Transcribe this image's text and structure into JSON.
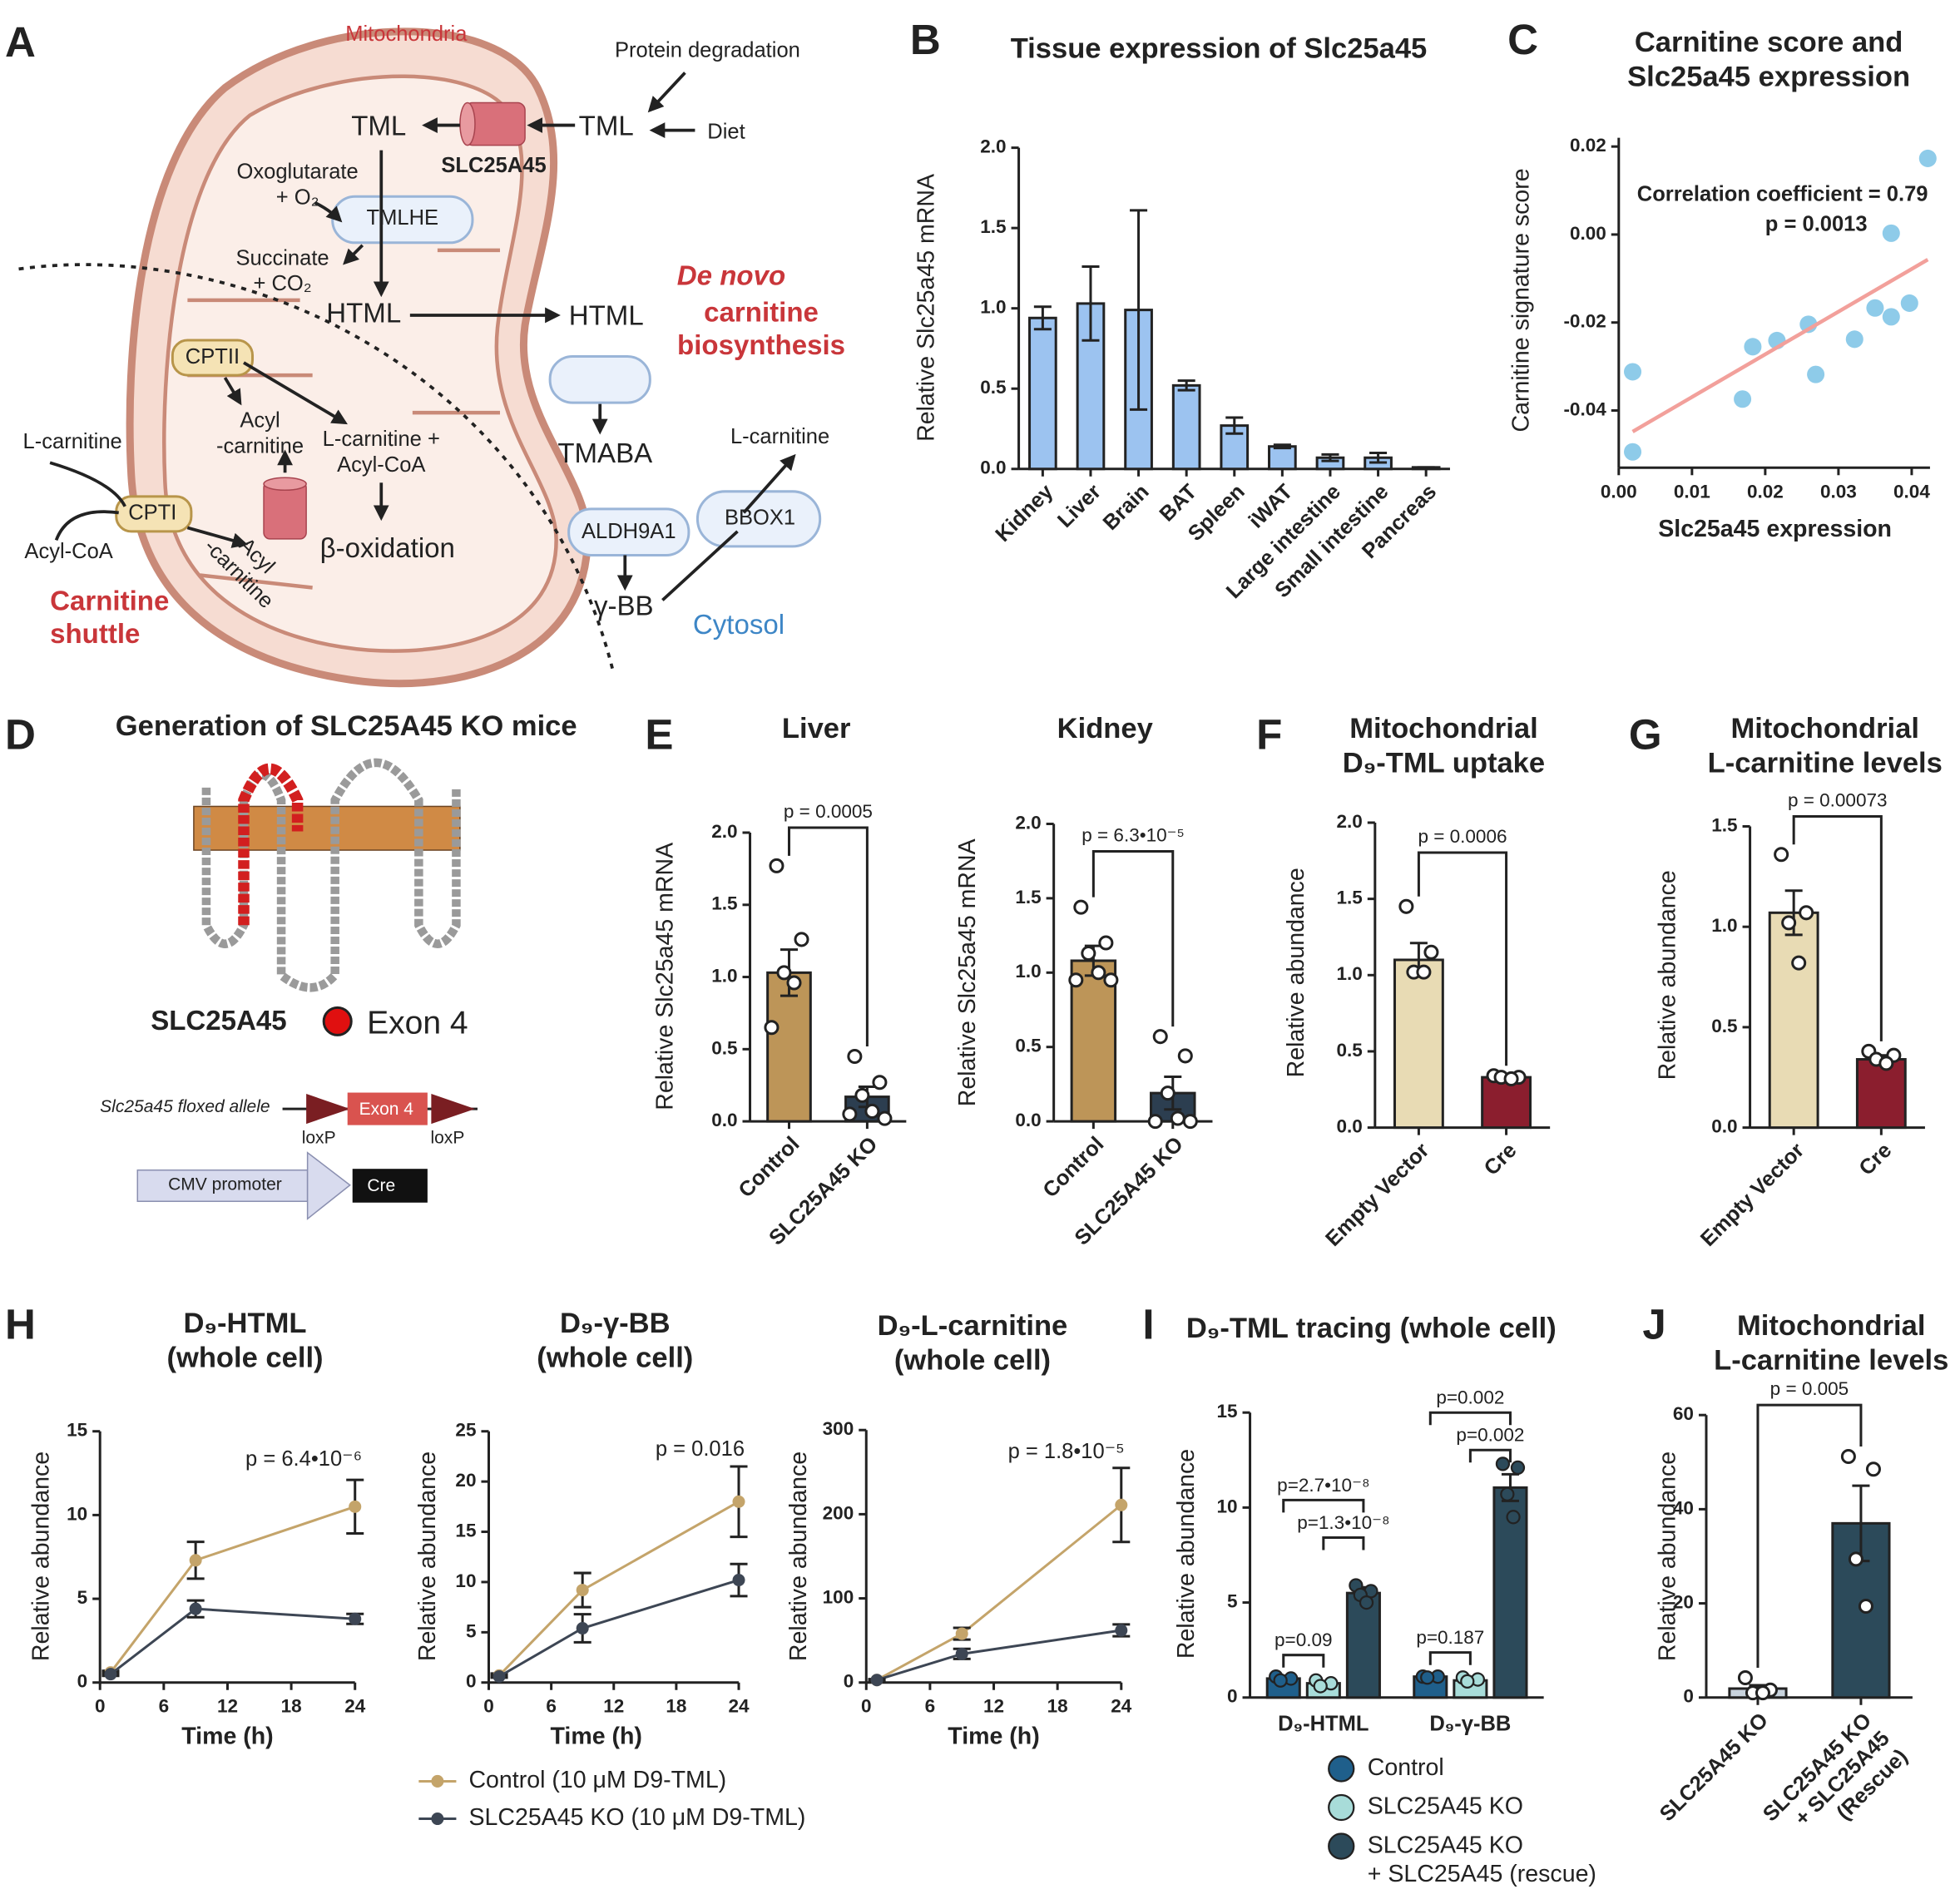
{
  "panel_labels": [
    "A",
    "B",
    "C",
    "D",
    "E",
    "F",
    "G",
    "H",
    "I",
    "J"
  ],
  "diagram_a": {
    "labels": [
      "Mitochondria",
      "Protein degradation",
      "TML",
      "TML",
      "Diet",
      "SLC25A45",
      "Oxoglutarate\n+ O₂",
      "TMLHE",
      "Succinate\n+ CO₂",
      "HTML",
      "HTML",
      "De novo",
      "carnitine\nbiosynthesis",
      "CPTII",
      "Acyl\n-carnitine",
      "L-carnitine +\nAcyl-CoA",
      "L-carnitine",
      "TMABA",
      "L-carnitine",
      "CPTI",
      "BBOX1",
      "ALDH9A1",
      "Acyl-CoA",
      "β-oxidation",
      "Acyl\n-carnitine",
      "γ-BB",
      "Carnitine\nshuttle",
      "Cytosol"
    ]
  },
  "diagram_d": {
    "labels": [
      "Generation of SLC25A45 KO mice",
      "SLC25A45",
      "Exon 4",
      "Slc25a45 floxed allele",
      "Exon 4",
      "loxP",
      "loxP",
      "CMV promoter",
      "Cre"
    ]
  },
  "chart_data": [
    {
      "type": "bar",
      "title": "Tissue expression of Slc25a45",
      "y_label": "Relative Slc25a45 mRNA",
      "categories": [
        "Kidney",
        "Liver",
        "Brain",
        "BAT",
        "Spleen",
        "iWAT",
        "Large intestine",
        "Small intestine",
        "Pancreas"
      ],
      "values": [
        0.94,
        1.03,
        0.99,
        0.52,
        0.27,
        0.14,
        0.07,
        0.07,
        0.01
      ],
      "errors": [
        0.07,
        0.23,
        0.62,
        0.03,
        0.05,
        0.01,
        0.02,
        0.03,
        0
      ],
      "color": "#9cc3f0",
      "ylim": [
        0,
        2
      ],
      "yticks": [
        {
          "value": 0,
          "label": "0.0"
        },
        0.5,
        {
          "value": 1,
          "label": "1.0"
        },
        1.5,
        {
          "value": 2,
          "label": "2.0"
        }
      ]
    },
    {
      "type": "scatter",
      "title": "Carnitine score and\nSlc25a45 expression",
      "x_label": "Slc25a45 expression",
      "y_label": "Carnitine signature score",
      "annotations": [
        "Correlation coefficient = 0.79",
        "p = 0.0013"
      ],
      "x": [
        0.0422,
        0.0372,
        0.035,
        0.0372,
        0.0397,
        0.0322,
        0.0259,
        0.0216,
        0.0183,
        0.0269,
        0.0169,
        0.0019,
        0.0019
      ],
      "y": [
        0.0173,
        0.0003,
        -0.0167,
        -0.0187,
        -0.0156,
        -0.0238,
        -0.0204,
        -0.0241,
        -0.0255,
        -0.0318,
        -0.0374,
        -0.0312,
        -0.0494
      ],
      "fit": {
        "x": [
          0.0019,
          0.0422
        ],
        "y": [
          -0.0448,
          -0.0057
        ]
      },
      "color": "#8ecbe9",
      "fit_color": "#f2a09b",
      "xlim": [
        0,
        0.0425
      ],
      "xticks": [
        {
          "value": 0,
          "label": "0.00"
        },
        0.01,
        0.02,
        0.03,
        0.04
      ],
      "ylim": [
        -0.053,
        0.022
      ],
      "yticks": [
        0.02,
        {
          "value": 0,
          "label": "0.00"
        },
        -0.02,
        -0.04
      ]
    },
    {
      "type": "bar",
      "title": "Liver",
      "y_label": "Relative Slc25a45 mRNA",
      "categories": [
        "Control",
        "SLC25A45 KO"
      ],
      "values": [
        1.03,
        0.17
      ],
      "errors": [
        0.16,
        0.07
      ],
      "points": [
        [
          1.77,
          1.26,
          1.03,
          0.96,
          0.65
        ],
        [
          0.45,
          0.27,
          0.18,
          0.07,
          0.05,
          0.02
        ]
      ],
      "colors": [
        "#bd9558",
        "#2c3e50"
      ],
      "p_value": "p = 0.0005",
      "ylim": [
        0,
        2
      ],
      "yticks": [
        {
          "value": 0,
          "label": "0.0"
        },
        0.5,
        {
          "value": 1,
          "label": "1.0"
        },
        1.5,
        {
          "value": 2,
          "label": "2.0"
        }
      ]
    },
    {
      "type": "bar",
      "title": "Kidney",
      "y_label": "Relative Slc25a45 mRNA",
      "categories": [
        "Control",
        "SLC25A45 KO"
      ],
      "values": [
        1.08,
        0.19
      ],
      "errors": [
        0.1,
        0.11
      ],
      "points": [
        [
          1.44,
          1.2,
          1.13,
          1.0,
          0.95,
          0.95
        ],
        [
          0.57,
          0.44,
          0.19,
          0.02,
          0.0,
          0.0
        ]
      ],
      "colors": [
        "#bd9558",
        "#2c3e50"
      ],
      "p_value": "p = 6.3•10⁻⁵",
      "ylim": [
        0,
        2
      ],
      "yticks": [
        {
          "value": 0,
          "label": "0.0"
        },
        0.5,
        {
          "value": 1,
          "label": "1.0"
        },
        1.5,
        {
          "value": 2,
          "label": "2.0"
        }
      ]
    },
    {
      "type": "bar",
      "title": "Mitochondrial\nD₉-TML uptake",
      "y_label": "Relative abundance",
      "categories": [
        "Empty Vector",
        "Cre"
      ],
      "values": [
        1.1,
        0.33
      ],
      "errors": [
        0.11,
        0.01
      ],
      "points": [
        [
          1.45,
          1.15,
          1.02,
          1.02
        ],
        [
          0.34,
          0.33,
          0.33,
          0.32
        ]
      ],
      "colors": [
        "#e8dbb4",
        "#8b1e2e"
      ],
      "p_value": "p = 0.0006",
      "ylim": [
        0,
        2
      ],
      "yticks": [
        {
          "value": 0,
          "label": "0.0"
        },
        0.5,
        {
          "value": 1,
          "label": "1.0"
        },
        1.5,
        {
          "value": 2,
          "label": "2.0"
        }
      ]
    },
    {
      "type": "bar",
      "title": "Mitochondrial\nL-carnitine levels",
      "y_label": "Relative abundance",
      "categories": [
        "Empty Vector",
        "Cre"
      ],
      "values": [
        1.07,
        0.34
      ],
      "errors": [
        0.11,
        0.02
      ],
      "points": [
        [
          1.36,
          1.07,
          1.02,
          0.82
        ],
        [
          0.38,
          0.36,
          0.34,
          0.32
        ]
      ],
      "colors": [
        "#e8dbb4",
        "#8b1e2e"
      ],
      "p_value": "p = 0.00073",
      "ylim": [
        0,
        1.5
      ],
      "yticks": [
        {
          "value": 0,
          "label": "0.0"
        },
        0.5,
        {
          "value": 1,
          "label": "1.0"
        },
        1.5
      ]
    },
    {
      "type": "line",
      "title": "D₉-HTML\n(whole cell)",
      "x_label": "Time (h)",
      "y_label": "Relative abundance",
      "p_value": "p = 6.4•10⁻⁶",
      "x": [
        1,
        9,
        24
      ],
      "series": [
        {
          "name": "Control (10 μM D9-TML)",
          "color": "#c4a46a",
          "values": [
            0.6,
            7.3,
            10.5
          ],
          "errors": [
            0.1,
            1.1,
            1.6
          ]
        },
        {
          "name": "SLC25A45 KO (10 μM D9-TML)",
          "color": "#3d4654",
          "values": [
            0.5,
            4.4,
            3.8
          ],
          "errors": [
            0.1,
            0.5,
            0.3
          ]
        }
      ],
      "xlim": [
        0,
        24
      ],
      "xticks": [
        0,
        6,
        12,
        18,
        24
      ],
      "ylim": [
        0,
        15
      ],
      "yticks": [
        0,
        5,
        10,
        15
      ]
    },
    {
      "type": "line",
      "title": "D₉-γ-BB\n(whole cell)",
      "x_label": "Time (h)",
      "y_label": "Relative abundance",
      "p_value": "p = 0.016",
      "x": [
        1,
        9,
        24
      ],
      "series": [
        {
          "color": "#c4a46a",
          "values": [
            0.7,
            9.2,
            18
          ],
          "errors": [
            0.2,
            1.7,
            3.5
          ]
        },
        {
          "color": "#3d4654",
          "values": [
            0.6,
            5.4,
            10.2
          ],
          "errors": [
            0.1,
            1.4,
            1.6
          ]
        }
      ],
      "xlim": [
        0,
        24
      ],
      "xticks": [
        0,
        6,
        12,
        18,
        24
      ],
      "ylim": [
        0,
        25
      ],
      "yticks": [
        0,
        5,
        10,
        15,
        20,
        25
      ]
    },
    {
      "type": "line",
      "title": "D₉-L-carnitine\n(whole cell)",
      "x_label": "Time (h)",
      "y_label": "Relative abundance",
      "p_value": "p = 1.8•10⁻⁵",
      "x": [
        1,
        9,
        24
      ],
      "series": [
        {
          "color": "#c4a46a",
          "values": [
            3,
            58,
            211
          ],
          "errors": [
            1,
            7,
            44
          ]
        },
        {
          "color": "#3d4654",
          "values": [
            3,
            34,
            62
          ],
          "errors": [
            1,
            6,
            7
          ]
        }
      ],
      "xlim": [
        0,
        24
      ],
      "xticks": [
        0,
        6,
        12,
        18,
        24
      ],
      "ylim": [
        0,
        300
      ],
      "yticks": [
        0,
        100,
        200,
        300
      ]
    },
    {
      "type": "grouped_bar",
      "title": "D₉-TML tracing (whole cell)",
      "y_label": "Relative abundance",
      "categories": [
        "D₉-HTML",
        "D₉-γ-BB"
      ],
      "series": [
        {
          "name": "Control",
          "color": "#1f5f8b",
          "values": [
            1.0,
            1.1
          ],
          "errors": [
            0.15,
            0.1
          ],
          "points": [
            [
              1.1,
              1.0,
              0.9
            ],
            [
              1.1,
              1.1,
              1.05
            ]
          ]
        },
        {
          "name": "SLC25A45 KO",
          "color": "#a8dcd9",
          "values": [
            0.75,
            0.9
          ],
          "errors": [
            0.1,
            0.1
          ],
          "points": [
            [
              0.9,
              0.75,
              0.6
            ],
            [
              1.05,
              0.95,
              0.85
            ]
          ]
        },
        {
          "name": "SLC25A45 KO\n+ SLC25A45 (rescue)",
          "color": "#2c4a5a",
          "values": [
            5.5,
            11.05
          ],
          "errors": [
            0.3,
            0.7
          ],
          "points": [
            [
              5.9,
              5.6,
              5.4,
              5.0
            ],
            [
              12.3,
              12.1,
              10.7,
              9.5
            ]
          ]
        }
      ],
      "comparisons": [
        {
          "label": "p=0.09",
          "category": 0,
          "from": 0,
          "to": 1
        },
        {
          "label": "p=2.7•10⁻⁸",
          "category": 0,
          "from": 0,
          "to": 2
        },
        {
          "label": "p=1.3•10⁻⁸",
          "category": 0,
          "from": 1,
          "to": 2
        },
        {
          "label": "p=0.187",
          "category": 1,
          "from": 0,
          "to": 1
        },
        {
          "label": "p=0.002",
          "category": 1,
          "from": 0,
          "to": 2
        },
        {
          "label": "p=0.002",
          "category": 1,
          "from": 1,
          "to": 2
        }
      ],
      "ylim": [
        0,
        15
      ],
      "yticks": [
        0,
        5,
        10,
        15
      ]
    },
    {
      "type": "bar",
      "title": "Mitochondrial\nL-carnitine levels",
      "y_label": "Relative abundance",
      "categories": [
        "SLC25A45 KO",
        "SLC25A45 KO\n+ SLC25A45\n(Rescue)"
      ],
      "values": [
        1.9,
        37
      ],
      "errors": [
        0.7,
        8
      ],
      "points": [
        [
          4.2,
          1.6,
          1.0,
          1.0
        ],
        [
          51.2,
          48.5,
          29.4,
          19.4
        ]
      ],
      "colors": [
        "#c8d3dd",
        "#2c4a5a"
      ],
      "p_value": "p = 0.005",
      "ylim": [
        0,
        60
      ],
      "yticks": [
        0,
        20,
        40,
        60
      ]
    }
  ]
}
